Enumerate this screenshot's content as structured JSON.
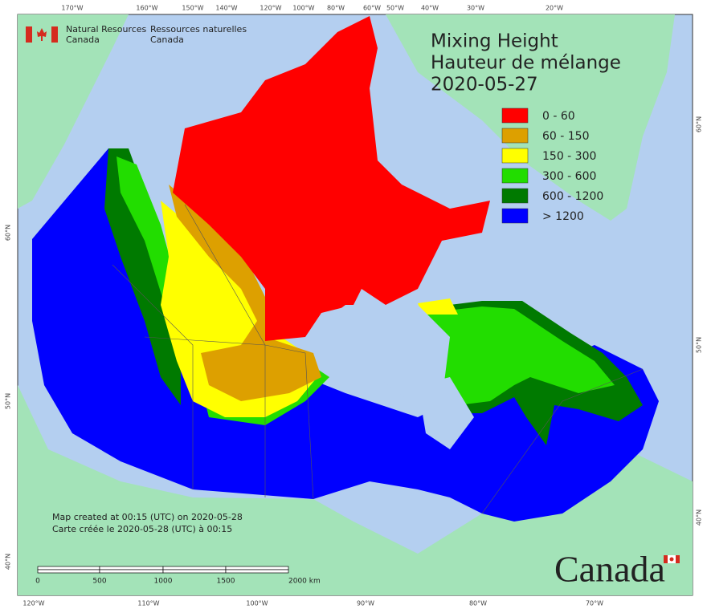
{
  "header": {
    "org_en": [
      "Natural Resources",
      "Canada"
    ],
    "org_fr": [
      "Ressources naturelles",
      "Canada"
    ]
  },
  "title": [
    "Mixing Height",
    "Hauteur de mélange",
    "2020-05-27"
  ],
  "legend": [
    {
      "label": "0 - 60",
      "color": "#ff0000"
    },
    {
      "label": "60 - 150",
      "color": "#dda000"
    },
    {
      "label": "150 - 300",
      "color": "#ffff00"
    },
    {
      "label": "300 - 600",
      "color": "#22dd00"
    },
    {
      "label": "600 - 1200",
      "color": "#007a00"
    },
    {
      "label": "> 1200",
      "color": "#0000ff"
    }
  ],
  "notes": [
    "Map created at 00:15 (UTC) on 2020-05-28",
    "Carte créée le 2020-05-28 (UTC) à 00:15"
  ],
  "scale_bar": [
    "0",
    "500",
    "1000",
    "1500",
    "2000  km"
  ],
  "graticule": {
    "top": [
      "170°W",
      "160°W",
      "150°W",
      "140°W",
      "120°W",
      "100°W",
      "80°W",
      "60°W",
      "50°W",
      "40°W",
      "30°W",
      "20°W"
    ],
    "bottom": [
      "120°W",
      "110°W",
      "100°W",
      "90°W",
      "80°W",
      "70°W"
    ],
    "left": [
      "60°N",
      "50°N",
      "40°N"
    ],
    "right": [
      "60°N",
      "50°N",
      "40°N"
    ]
  },
  "wordmark": "Canada"
}
